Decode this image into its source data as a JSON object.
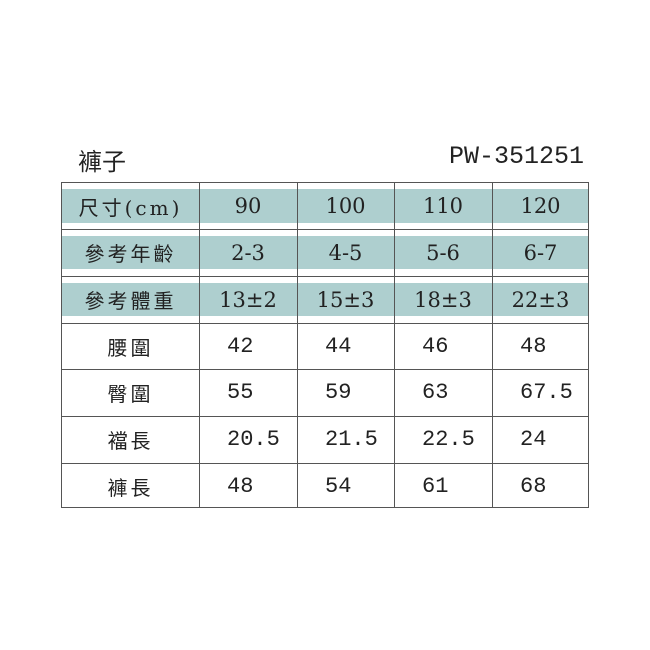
{
  "title": "褲子",
  "product_code": "PW-351251",
  "colors": {
    "header_band": "#aecfcf",
    "border": "#555555"
  },
  "header_rows": [
    {
      "label": "尺寸(cm)",
      "values": [
        "90",
        "100",
        "110",
        "120"
      ]
    },
    {
      "label": "參考年齡",
      "values": [
        "2-3",
        "4-5",
        "5-6",
        "6-7"
      ]
    },
    {
      "label": "參考體重",
      "values": [
        "13±2",
        "15±3",
        "18±3",
        "22±3"
      ]
    }
  ],
  "measure_rows": [
    {
      "label": "腰圍",
      "values": [
        "42",
        "44",
        "46",
        "48"
      ]
    },
    {
      "label": "臀圍",
      "values": [
        "55",
        "59",
        "63",
        "67.5"
      ]
    },
    {
      "label": "襠長",
      "values": [
        "20.5",
        "21.5",
        "22.5",
        "24"
      ]
    },
    {
      "label": "褲長",
      "values": [
        "48",
        "54",
        "61",
        "68"
      ]
    }
  ]
}
